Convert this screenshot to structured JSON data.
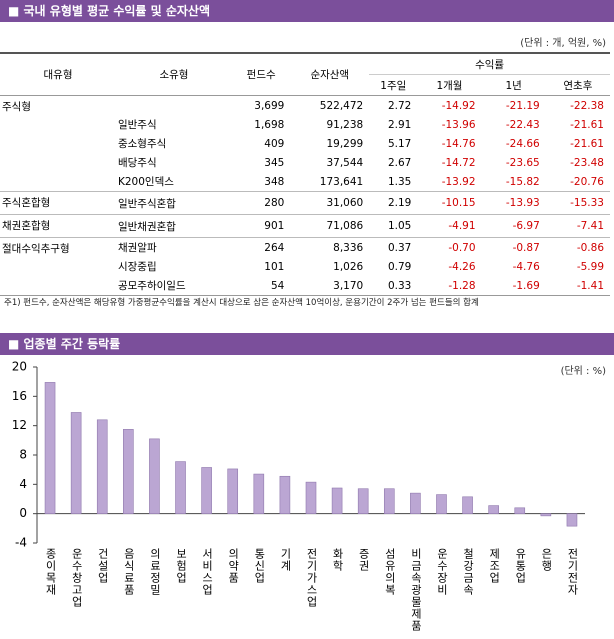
{
  "table_section": {
    "title": "■ 국내 유형별 평균 수익률 및 순자산액",
    "unit": "(단위 : 개, 억원, %)",
    "headers": [
      "대유형",
      "소유형",
      "펀드수",
      "순자산액",
      "수익률"
    ],
    "subheaders": [
      "1주일",
      "1개월",
      "1년",
      "연초후"
    ],
    "groups": [
      {
        "name": "주식형",
        "rows": [
          {
            "values": [
              "3,699",
              "522,472",
              "2.72",
              "-14.92",
              "-21.19",
              "-22.38"
            ]
          },
          {
            "type": "일반주식",
            "values": [
              "1,698",
              "91,238",
              "2.91",
              "-13.96",
              "-22.43",
              "-21.61"
            ]
          },
          {
            "type": "중소형주식",
            "values": [
              "409",
              "19,299",
              "5.17",
              "-14.76",
              "-24.66",
              "-21.61"
            ]
          },
          {
            "type": "배당주식",
            "values": [
              "345",
              "37,544",
              "2.67",
              "-14.72",
              "-23.65",
              "-23.48"
            ]
          },
          {
            "type": "K200인덱스",
            "values": [
              "348",
              "173,641",
              "1.35",
              "-13.92",
              "-15.82",
              "-20.76"
            ]
          }
        ]
      },
      {
        "name": "주식혼합형",
        "rows": [
          {
            "type": "일반주식혼합",
            "values": [
              "280",
              "31,060",
              "2.19",
              "-10.15",
              "-13.93",
              "-15.33"
            ]
          }
        ]
      },
      {
        "name": "채권혼합형",
        "rows": [
          {
            "type": "일반채권혼합",
            "values": [
              "901",
              "71,086",
              "1.05",
              "-4.91",
              "-6.97",
              "-7.41"
            ]
          }
        ]
      },
      {
        "name": "절대수익추구형",
        "rows": [
          {
            "type": "채권알파",
            "values": [
              "264",
              "8,336",
              "0.37",
              "-0.70",
              "-0.87",
              "-0.86"
            ]
          },
          {
            "type": "시장중립",
            "values": [
              "101",
              "1,026",
              "0.79",
              "-4.26",
              "-4.76",
              "-5.99"
            ]
          },
          {
            "type": "공모주하이일드",
            "values": [
              "54",
              "3,170",
              "0.33",
              "-1.28",
              "-1.69",
              "-1.41"
            ]
          }
        ]
      }
    ],
    "footnote": "주1) 펀드수, 순자산액은 해당유형 가중평균수익률을 계산시 대상으로 삼은 순자산액 10억이상, 운용기간이 2주가 넘는 펀드들의 합계"
  },
  "chart_section": {
    "title": "■ 업종별 주간 등락률",
    "unit": "(단위 : %)"
  },
  "chart_data": {
    "type": "bar",
    "color": "#bba6d3",
    "categories": [
      "종이목재",
      "운수창고업",
      "건설업",
      "음식료품",
      "의료정밀",
      "보험업",
      "서비스업",
      "의약품",
      "통신업",
      "기계",
      "전기가스업",
      "화학",
      "증권",
      "섬유의복",
      "비금속광물제품",
      "운수장비",
      "철강금속",
      "제조업",
      "유통업",
      "은행",
      "전기전자"
    ],
    "values": [
      17.9,
      13.8,
      12.8,
      11.5,
      10.2,
      7.1,
      6.3,
      6.1,
      5.4,
      5.1,
      4.3,
      3.5,
      3.4,
      3.4,
      2.8,
      2.6,
      2.3,
      1.1,
      0.8,
      -0.3,
      -1.7
    ],
    "ylim": [
      -4,
      20
    ],
    "yticks": [
      -4,
      0,
      4,
      8,
      12,
      16,
      20
    ]
  }
}
